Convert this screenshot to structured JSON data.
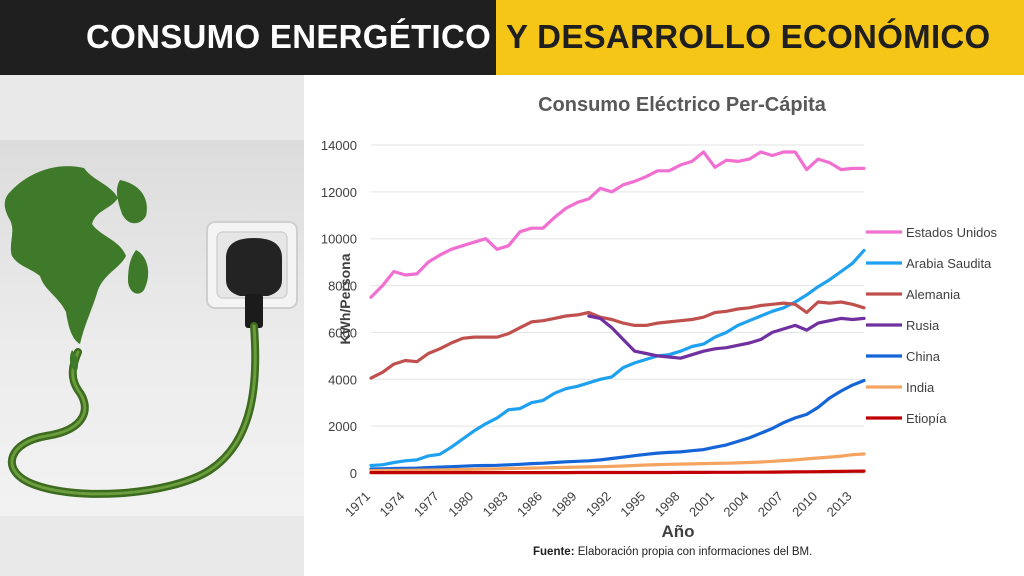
{
  "header": {
    "title_left": "CONSUMO ENERGÉTICO",
    "title_right": "Y DESARROLLO ECONÓMICO",
    "colors": {
      "left_bg": "#1f1f1f",
      "right_bg": "#f5c518"
    }
  },
  "illustration": {
    "subject": "globe-with-power-plug-icon"
  },
  "footer": {
    "source_label": "Fuente:",
    "source_text": "Elaboración propia con informaciones del BM."
  },
  "chart_data": {
    "type": "line",
    "title": "Consumo Eléctrico Per-Cápita",
    "xlabel": "Año",
    "ylabel": "KWh/Persona",
    "ylim": [
      0,
      14000
    ],
    "yticks": [
      0,
      2000,
      4000,
      6000,
      8000,
      10000,
      12000,
      14000
    ],
    "xlim": [
      1971,
      2014
    ],
    "xticks": [
      1971,
      1974,
      1977,
      1980,
      1983,
      1986,
      1989,
      1992,
      1995,
      1998,
      2001,
      2004,
      2007,
      2010,
      2013
    ],
    "grid": "horizontal",
    "legend_position": "right",
    "series": [
      {
        "name": "Estados Unidos",
        "color": "#f06fd0",
        "x_start": 1971,
        "values": [
          7500,
          8000,
          8600,
          8450,
          8500,
          9000,
          9300,
          9550,
          9700,
          9850,
          10000,
          9550,
          9700,
          10300,
          10450,
          10450,
          10900,
          11300,
          11550,
          11700,
          12150,
          12000,
          12300,
          12450,
          12650,
          12900,
          12900,
          13150,
          13300,
          13700,
          13050,
          13350,
          13300,
          13400,
          13700,
          13550,
          13700,
          13700,
          12950,
          13400,
          13250,
          12950,
          13000,
          13000
        ]
      },
      {
        "name": "Arabia Saudita",
        "color": "#1ea1f0",
        "x_start": 1971,
        "values": [
          320,
          350,
          450,
          520,
          560,
          730,
          800,
          1100,
          1450,
          1800,
          2100,
          2350,
          2700,
          2750,
          3000,
          3100,
          3400,
          3600,
          3700,
          3850,
          4000,
          4100,
          4500,
          4700,
          4850,
          5000,
          5050,
          5200,
          5400,
          5500,
          5800,
          6000,
          6300,
          6500,
          6700,
          6900,
          7050,
          7300,
          7600,
          7950,
          8250,
          8600,
          8950,
          9500
        ]
      },
      {
        "name": "Alemania",
        "color": "#c0504d",
        "x_start": 1971,
        "values": [
          4050,
          4300,
          4650,
          4800,
          4750,
          5100,
          5300,
          5550,
          5750,
          5800,
          5800,
          5800,
          5950,
          6200,
          6450,
          6500,
          6600,
          6700,
          6750,
          6850,
          6650,
          6550,
          6400,
          6300,
          6300,
          6400,
          6450,
          6500,
          6550,
          6650,
          6850,
          6900,
          7000,
          7050,
          7150,
          7200,
          7250,
          7200,
          6850,
          7300,
          7250,
          7300,
          7200,
          7050
        ]
      },
      {
        "name": "Rusia",
        "color": "#7030a0",
        "x_start": 1990,
        "values": [
          6700,
          6600,
          6200,
          5700,
          5200,
          5100,
          5000,
          4950,
          4900,
          5050,
          5200,
          5300,
          5350,
          5450,
          5550,
          5700,
          6000,
          6150,
          6300,
          6100,
          6400,
          6500,
          6600,
          6550,
          6600
        ]
      },
      {
        "name": "China",
        "color": "#1565d8",
        "x_start": 1971,
        "values": [
          170,
          180,
          190,
          200,
          210,
          230,
          250,
          270,
          290,
          310,
          320,
          330,
          350,
          370,
          400,
          420,
          450,
          480,
          500,
          520,
          560,
          620,
          680,
          740,
          800,
          850,
          880,
          900,
          950,
          1000,
          1100,
          1200,
          1350,
          1500,
          1700,
          1900,
          2150,
          2350,
          2500,
          2800,
          3200,
          3500,
          3750,
          3950
        ]
      },
      {
        "name": "India",
        "color": "#f4a460",
        "x_start": 1971,
        "values": [
          100,
          105,
          110,
          115,
          120,
          125,
          130,
          140,
          150,
          160,
          170,
          180,
          190,
          200,
          210,
          220,
          230,
          240,
          250,
          260,
          270,
          280,
          300,
          320,
          340,
          360,
          370,
          380,
          390,
          400,
          410,
          420,
          430,
          450,
          470,
          500,
          530,
          560,
          600,
          640,
          680,
          720,
          780,
          810
        ]
      },
      {
        "name": "Etiopía",
        "color": "#c00000",
        "x_start": 1971,
        "values": [
          18,
          18,
          18,
          18,
          18,
          18,
          18,
          18,
          18,
          18,
          18,
          18,
          18,
          18,
          18,
          18,
          18,
          18,
          20,
          20,
          20,
          20,
          20,
          22,
          22,
          22,
          22,
          24,
          24,
          26,
          28,
          30,
          32,
          34,
          36,
          40,
          44,
          48,
          52,
          56,
          62,
          68,
          75,
          80
        ]
      }
    ]
  }
}
